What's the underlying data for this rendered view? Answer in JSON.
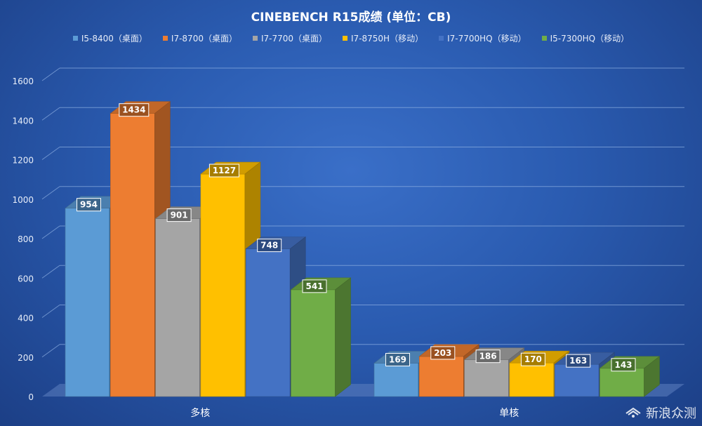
{
  "chart_data": {
    "type": "bar",
    "title": "CINEBENCH R15成绩 (单位：CB)",
    "categories": [
      "多核",
      "单核"
    ],
    "series": [
      {
        "name": "I5-8400（桌面）",
        "color": "#5b9bd5",
        "values": [
          954,
          169
        ]
      },
      {
        "name": "I7-8700（桌面）",
        "color": "#ed7d31",
        "values": [
          1434,
          203
        ]
      },
      {
        "name": "I7-7700（桌面）",
        "color": "#a5a5a5",
        "values": [
          901,
          186
        ]
      },
      {
        "name": "I7-8750H（移动）",
        "color": "#ffc000",
        "values": [
          1127,
          170
        ]
      },
      {
        "name": "I7-7700HQ（移动）",
        "color": "#4472c4",
        "values": [
          748,
          163
        ]
      },
      {
        "name": "I5-7300HQ（移动）",
        "color": "#70ad47",
        "values": [
          541,
          143
        ]
      }
    ],
    "ylim": [
      0,
      1600
    ],
    "yticks": [
      0,
      200,
      400,
      600,
      800,
      1000,
      1200,
      1400,
      1600
    ],
    "grid": true,
    "legend_position": "top",
    "xlabel": "",
    "ylabel": ""
  },
  "watermark": {
    "text": "新浪众测",
    "icon": "sina-zhongce-logo-icon"
  }
}
